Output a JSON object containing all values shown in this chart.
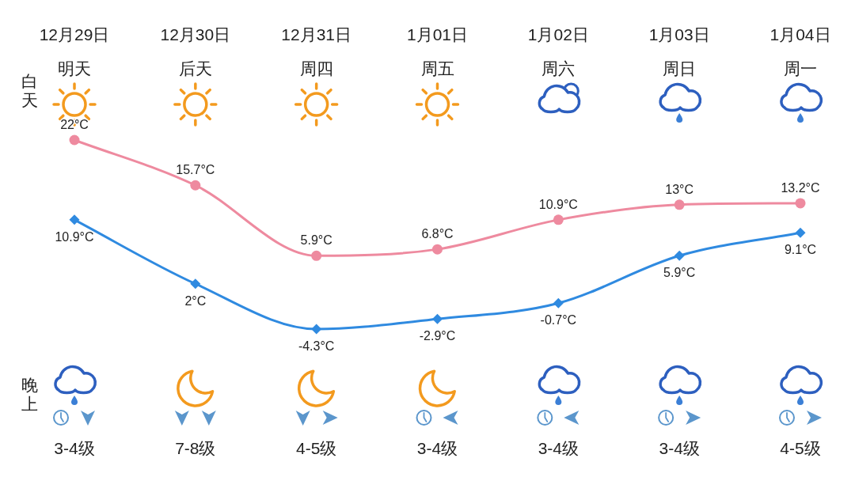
{
  "chart_data": {
    "type": "line",
    "tick_labels": "x",
    "categories": [
      "12月29日",
      "12月30日",
      "12月31日",
      "1月01日",
      "1月02日",
      "1月03日",
      "1月04日"
    ],
    "series": [
      {
        "color": "#ee8a9f",
        "marker": "circle",
        "values": [
          22,
          15.7,
          5.9,
          6.8,
          10.9,
          13,
          13.2
        ],
        "value_labels": [
          "22°C",
          "15.7°C",
          "5.9°C",
          "6.8°C",
          "10.9°C",
          "13°C",
          "13.2°C"
        ]
      },
      {
        "color": "#2f8ae0",
        "marker": "diamond",
        "values": [
          10.9,
          2,
          -4.3,
          -2.9,
          -0.7,
          5.9,
          9.1
        ],
        "value_labels": [
          "10.9°C",
          "2°C",
          "-4.3°C",
          "-2.9°C",
          "-0.7°C",
          "5.9°C",
          "9.1°C"
        ]
      }
    ],
    "annotations": [
      "白天",
      "晚上",
      "明天",
      "后天",
      "周四",
      "周五",
      "周六",
      "周日",
      "周一",
      "3-4级",
      "7-8级",
      "4-5级",
      "3-4级",
      "3-4级",
      "3-4级",
      "4-5级"
    ]
  }
}
